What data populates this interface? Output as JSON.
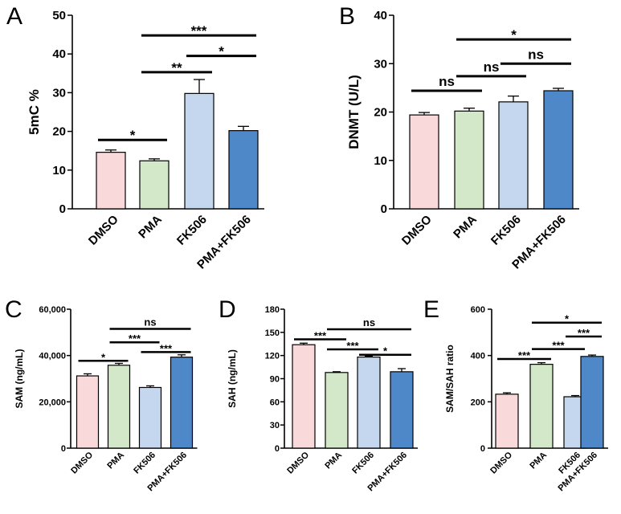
{
  "categories": [
    "DMSO",
    "PMA",
    "FK506",
    "PMA+FK506"
  ],
  "colors": [
    "#f9d9da",
    "#d2e8c8",
    "#c5d7ef",
    "#4f88c9"
  ],
  "chart_data": [
    {
      "panel": "A",
      "type": "bar",
      "ylabel": "5mC %",
      "ylim": [
        0,
        50
      ],
      "yticks": [
        0,
        10,
        20,
        30,
        40,
        50
      ],
      "ytick_labels": [
        "0",
        "10",
        "20",
        "30",
        "40",
        "50"
      ],
      "categories": [
        "DMSO",
        "PMA",
        "FK506",
        "PMA+FK506"
      ],
      "values": [
        14.6,
        12.4,
        29.8,
        20.2
      ],
      "errors": [
        0.6,
        0.5,
        3.6,
        1.1
      ],
      "significance": [
        {
          "from": 0,
          "to": 1,
          "label": "*",
          "y": 17.8
        },
        {
          "from": 1,
          "to": 2,
          "label": "**",
          "y": 35.3
        },
        {
          "from": 2,
          "to": 3,
          "label": "*",
          "y": 39.5
        },
        {
          "from": 1,
          "to": 3,
          "label": "***",
          "y": 44.8
        }
      ]
    },
    {
      "panel": "B",
      "type": "bar",
      "ylabel": "DNMT (U/L)",
      "ylim": [
        0,
        40
      ],
      "yticks": [
        0,
        10,
        20,
        30,
        40
      ],
      "ytick_labels": [
        "0",
        "10",
        "20",
        "30",
        "40"
      ],
      "categories": [
        "DMSO",
        "PMA",
        "FK506",
        "PMA+FK506"
      ],
      "values": [
        19.4,
        20.2,
        22.1,
        24.4
      ],
      "errors": [
        0.5,
        0.6,
        1.2,
        0.5
      ],
      "significance": [
        {
          "from": 0,
          "to": 1,
          "label": "ns",
          "y": 24.4
        },
        {
          "from": 1,
          "to": 2,
          "label": "ns",
          "y": 27.4
        },
        {
          "from": 2,
          "to": 3,
          "label": "ns",
          "y": 30.0
        },
        {
          "from": 1,
          "to": 3,
          "label": "*",
          "y": 35.0
        }
      ]
    },
    {
      "panel": "C",
      "type": "bar",
      "ylabel": "SAM (ng/mL)",
      "ylim": [
        0,
        60000
      ],
      "yticks": [
        0,
        20000,
        40000,
        60000
      ],
      "ytick_labels": [
        "0",
        "20,000",
        "40,000",
        "60,000"
      ],
      "categories": [
        "DMSO",
        "PMA",
        "FK506",
        "PMA+FK506"
      ],
      "values": [
        31200,
        35800,
        26200,
        39300
      ],
      "errors": [
        900,
        800,
        700,
        1000
      ],
      "significance": [
        {
          "from": 0,
          "to": 1,
          "label": "*",
          "y": 37700
        },
        {
          "from": 2,
          "to": 3,
          "label": "***",
          "y": 41500
        },
        {
          "from": 1,
          "to": 2,
          "label": "***",
          "y": 45700
        },
        {
          "from": 1,
          "to": 3,
          "label": "ns",
          "y": 51500
        }
      ]
    },
    {
      "panel": "D",
      "type": "bar",
      "ylabel": "SAH (ng/mL)",
      "ylim": [
        0,
        180
      ],
      "yticks": [
        0,
        30,
        60,
        90,
        120,
        150,
        180
      ],
      "ytick_labels": [
        "0",
        "30",
        "60",
        "90",
        "120",
        "150",
        "180"
      ],
      "categories": [
        "DMSO",
        "PMA",
        "FK506",
        "PMA+FK506"
      ],
      "values": [
        134,
        98,
        118,
        99
      ],
      "errors": [
        2,
        1,
        1,
        4
      ],
      "significance": [
        {
          "from": 0,
          "to": 1,
          "label": "***",
          "y": 141
        },
        {
          "from": 1,
          "to": 2,
          "label": "***",
          "y": 128
        },
        {
          "from": 2,
          "to": 3,
          "label": "*",
          "y": 121
        },
        {
          "from": 1,
          "to": 3,
          "label": "ns",
          "y": 154
        }
      ]
    },
    {
      "panel": "E",
      "type": "bar",
      "ylabel": "SAM/SAH ratio",
      "ylim": [
        0,
        600
      ],
      "yticks": [
        0,
        200,
        400,
        600
      ],
      "ytick_labels": [
        "0",
        "200",
        "400",
        "600"
      ],
      "categories": [
        "DMSO",
        "PMA",
        "FK506",
        "PMA+FK506"
      ],
      "values": [
        233,
        362,
        222,
        396
      ],
      "errors": [
        6,
        7,
        5,
        6
      ],
      "significance": [
        {
          "from": 0,
          "to": 1,
          "label": "***",
          "y": 385
        },
        {
          "from": 1,
          "to": 2,
          "label": "***",
          "y": 428
        },
        {
          "from": 2,
          "to": 3,
          "label": "***",
          "y": 482
        },
        {
          "from": 1,
          "to": 3,
          "label": "*",
          "y": 542
        }
      ]
    }
  ]
}
